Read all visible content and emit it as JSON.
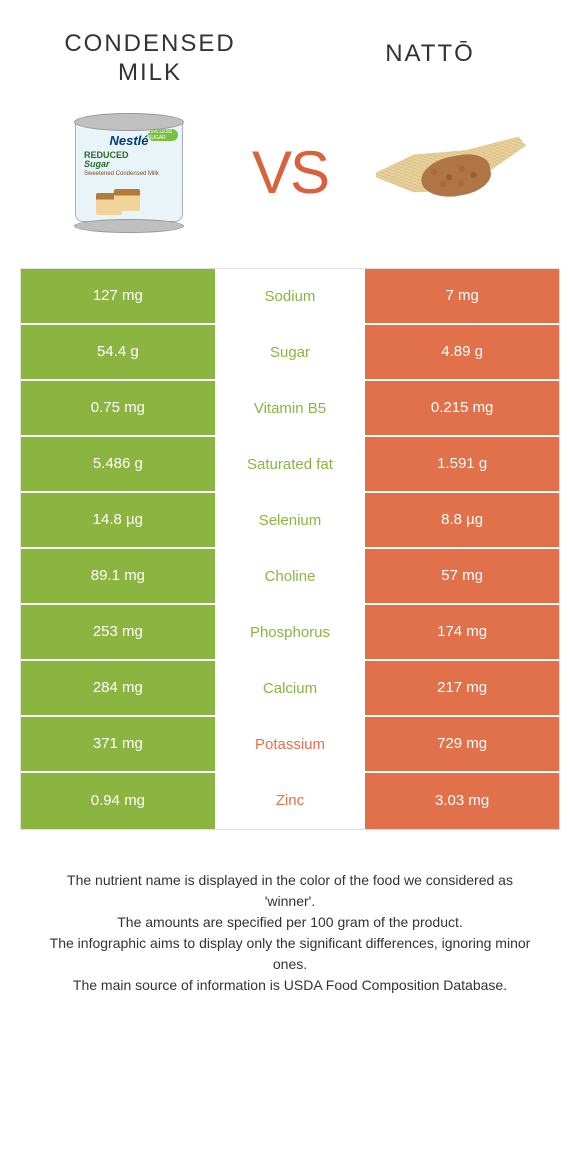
{
  "header": {
    "left_title": "CONDENSED MILK",
    "right_title": "NATTŌ",
    "vs_label": "VS"
  },
  "colors": {
    "green": "#8bb441",
    "orange": "#e1714a",
    "green_text": "#8bb441",
    "orange_text": "#e1714a",
    "vs": "#d9623d"
  },
  "can": {
    "brand": "Nestlé",
    "type_line1": "REDUCED",
    "type_line2": "Sugar",
    "sub": "Sweetened Condensed Milk",
    "badge": "25% LESS SUGAR"
  },
  "table": {
    "left_bg": "#8bb441",
    "right_bg": "#e1714a",
    "rows": [
      {
        "left": "127 mg",
        "name": "Sodium",
        "right": "7 mg",
        "winner": "left"
      },
      {
        "left": "54.4 g",
        "name": "Sugar",
        "right": "4.89 g",
        "winner": "left"
      },
      {
        "left": "0.75 mg",
        "name": "Vitamin B5",
        "right": "0.215 mg",
        "winner": "left"
      },
      {
        "left": "5.486 g",
        "name": "Saturated fat",
        "right": "1.591 g",
        "winner": "left"
      },
      {
        "left": "14.8 µg",
        "name": "Selenium",
        "right": "8.8 µg",
        "winner": "left"
      },
      {
        "left": "89.1 mg",
        "name": "Choline",
        "right": "57 mg",
        "winner": "left"
      },
      {
        "left": "253 mg",
        "name": "Phosphorus",
        "right": "174 mg",
        "winner": "left"
      },
      {
        "left": "284 mg",
        "name": "Calcium",
        "right": "217 mg",
        "winner": "left"
      },
      {
        "left": "371 mg",
        "name": "Potassium",
        "right": "729 mg",
        "winner": "right"
      },
      {
        "left": "0.94 mg",
        "name": "Zinc",
        "right": "3.03 mg",
        "winner": "right"
      }
    ]
  },
  "footer": {
    "line1": "The nutrient name is displayed in the color of the food we considered as 'winner'.",
    "line2": "The amounts are specified per 100 gram of the product.",
    "line3": "The infographic aims to display only the significant differences, ignoring minor ones.",
    "line4": "The main source of information is USDA Food Composition Database."
  }
}
